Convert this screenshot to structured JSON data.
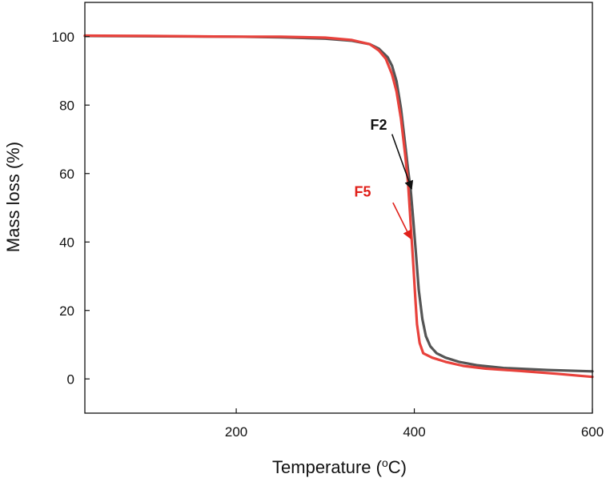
{
  "chart_data": {
    "type": "line",
    "xlabel": "Temperature (",
    "xlabel_sup": "o",
    "xlabel_suffix": "C)",
    "ylabel": "Mass loss (%)",
    "xlim": [
      30,
      600
    ],
    "ylim": [
      -10,
      110
    ],
    "xticks": [
      200,
      400,
      600
    ],
    "yticks": [
      0,
      20,
      40,
      60,
      80,
      100
    ],
    "grid": false,
    "series": [
      {
        "name": "F2",
        "color": "#555555",
        "points": [
          [
            30,
            100.2
          ],
          [
            100,
            100.1
          ],
          [
            200,
            100.0
          ],
          [
            250,
            99.8
          ],
          [
            300,
            99.4
          ],
          [
            330,
            98.8
          ],
          [
            350,
            97.8
          ],
          [
            360,
            96.5
          ],
          [
            370,
            94.0
          ],
          [
            375,
            91.5
          ],
          [
            380,
            87.0
          ],
          [
            385,
            79.0
          ],
          [
            390,
            68.0
          ],
          [
            393,
            61.0
          ],
          [
            396,
            55.0
          ],
          [
            399,
            46.0
          ],
          [
            402,
            36.0
          ],
          [
            405,
            26.0
          ],
          [
            409,
            17.5
          ],
          [
            413,
            12.5
          ],
          [
            418,
            9.5
          ],
          [
            425,
            7.5
          ],
          [
            435,
            6.2
          ],
          [
            450,
            5.0
          ],
          [
            470,
            4.0
          ],
          [
            500,
            3.2
          ],
          [
            550,
            2.6
          ],
          [
            600,
            2.2
          ]
        ]
      },
      {
        "name": "F5",
        "color": "#e8423c",
        "points": [
          [
            30,
            100.3
          ],
          [
            100,
            100.2
          ],
          [
            200,
            100.0
          ],
          [
            250,
            100.0
          ],
          [
            300,
            99.7
          ],
          [
            330,
            99.0
          ],
          [
            350,
            97.8
          ],
          [
            360,
            96.0
          ],
          [
            368,
            93.5
          ],
          [
            375,
            89.0
          ],
          [
            380,
            84.0
          ],
          [
            385,
            76.0
          ],
          [
            390,
            65.0
          ],
          [
            393,
            57.0
          ],
          [
            395,
            49.0
          ],
          [
            397,
            41.0
          ],
          [
            399,
            33.0
          ],
          [
            401,
            24.0
          ],
          [
            403,
            16.0
          ],
          [
            406,
            10.5
          ],
          [
            410,
            7.5
          ],
          [
            420,
            6.2
          ],
          [
            435,
            5.0
          ],
          [
            455,
            3.8
          ],
          [
            480,
            3.0
          ],
          [
            520,
            2.3
          ],
          [
            560,
            1.5
          ],
          [
            600,
            0.6
          ]
        ]
      }
    ],
    "annotations": [
      {
        "text": "F2",
        "color": "#111111",
        "label_at": [
          360,
          72.8
        ],
        "arrow_from": [
          375,
          71.5
        ],
        "arrow_to": [
          397,
          55.5
        ]
      },
      {
        "text": "F5",
        "color": "#e0201a",
        "label_at": [
          342,
          53.3
        ],
        "arrow_from": [
          376,
          51.5
        ],
        "arrow_to": [
          396,
          41.0
        ]
      }
    ]
  }
}
